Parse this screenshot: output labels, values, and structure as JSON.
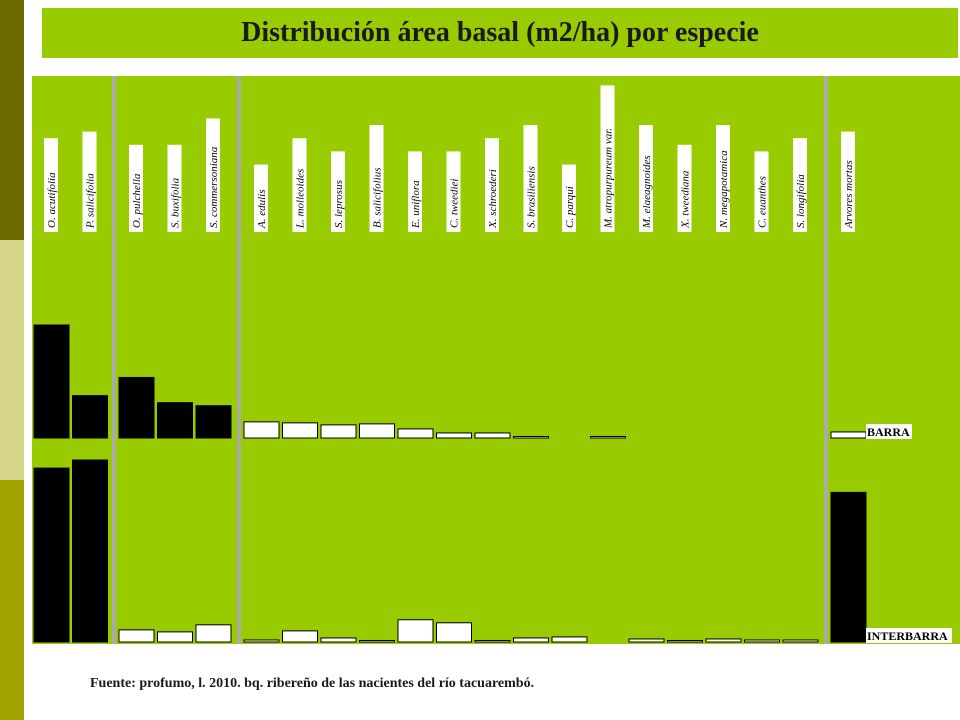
{
  "title": "Distribución área basal (m2/ha) por especie",
  "source": "Fuente: profumo, l. 2010. bq. ribereño de las nacientes del río tacuarembó.",
  "colors": {
    "background": "#99cc00",
    "barra_bar": "#ffffff",
    "interbarra_bar_white": "#ffffff",
    "dominant_bar": "#000000",
    "separator": "#aaaaaa",
    "label_box": "#ffffff"
  },
  "chart_data": {
    "type": "bar",
    "title": "Distribución área basal (m2/ha) por especie",
    "panels": [
      "BARRA",
      "INTERBARRA"
    ],
    "groups": [
      {
        "species": [
          "O. acutifolia",
          "P. salicifolia"
        ]
      },
      {
        "species": [
          "O. pulchella",
          "S. buxifolia",
          "S. commersoniana"
        ]
      },
      {
        "species": [
          "A. edulis",
          "L. molleoides",
          "S. leprosus",
          "B. salicifolius",
          "E. uniflora",
          "C. tweediei",
          "X. schroederi",
          "S. brasiliensis",
          "C. parqui",
          "M. atropurpureum var.",
          "M. elaeagnoides",
          "X. tweediana",
          "N. megapotamica",
          "C. euanthes",
          "S. longifolia"
        ]
      },
      {
        "species": [
          "Arvores mortas"
        ]
      }
    ],
    "categories": [
      "O. acutifolia",
      "P. salicifolia",
      "O. pulchella",
      "S. buxifolia",
      "S. commersoniana",
      "A. edulis",
      "L. molleoides",
      "S. leprosus",
      "B. salicifolius",
      "E. uniflora",
      "C. tweediei",
      "X. schroederi",
      "S. brasiliensis",
      "C. parqui",
      "M. atropurpureum var.",
      "M. elaeagnoides",
      "X. tweediana",
      "N. megapotamica",
      "C. euanthes",
      "S. longifolia",
      "Arvores mortas"
    ],
    "series": [
      {
        "name": "BARRA",
        "values": [
          11.2,
          4.2,
          6.0,
          3.5,
          3.2,
          1.6,
          1.5,
          1.3,
          1.4,
          0.9,
          0.5,
          0.5,
          0.1,
          0.0,
          0.1,
          0.0,
          0.0,
          0.0,
          0.0,
          0.0,
          0.6
        ]
      },
      {
        "name": "INTERBARRA",
        "values": [
          17.2,
          18.0,
          1.2,
          1.0,
          1.7,
          0.2,
          1.1,
          0.4,
          0.1,
          2.2,
          1.9,
          0.1,
          0.4,
          0.5,
          0.0,
          0.3,
          0.1,
          0.3,
          0.2,
          0.2,
          14.8
        ]
      }
    ],
    "ylim_barra": [
      0,
      11.2
    ],
    "ylim_interbarra": [
      0,
      18.0
    ],
    "grid": false,
    "legend": "right"
  }
}
